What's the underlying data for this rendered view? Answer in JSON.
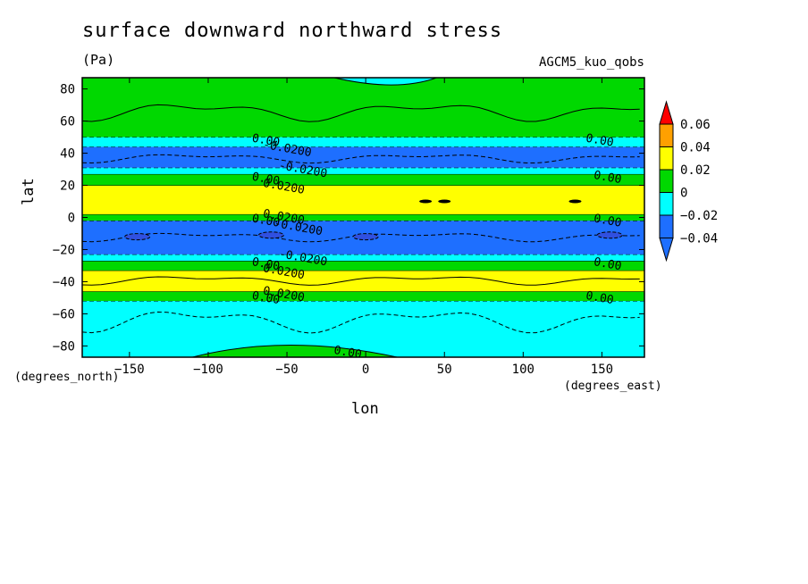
{
  "chart_data": {
    "type": "heatmap",
    "title": "surface downward northward stress",
    "units": "(Pa)",
    "model": "AGCM5_kuo_qobs",
    "xlabel": "lon",
    "ylabel": "lat",
    "x_unit_label": "(degrees_east)",
    "y_unit_label": "(degrees_north)",
    "xlim": [
      -180,
      177
    ],
    "ylim": [
      -87,
      87
    ],
    "x_ticks": [
      -150,
      -100,
      -50,
      0,
      50,
      100,
      150
    ],
    "x_tick_labels": [
      "−150",
      "−100",
      "−50",
      "0",
      "50",
      "100",
      "150"
    ],
    "y_ticks": [
      -80,
      -60,
      -40,
      -20,
      0,
      20,
      40,
      60,
      80
    ],
    "y_tick_labels": [
      "−80",
      "−60",
      "−40",
      "−20",
      "0",
      "20",
      "40",
      "60",
      "80"
    ],
    "colorbar": {
      "levels": [
        -0.04,
        -0.02,
        0,
        0.02,
        0.04,
        0.06
      ],
      "labels": [
        "−0.04",
        "−0.02",
        "0",
        "0.02",
        "0.04",
        "0.06"
      ],
      "colors": [
        "#1e6fff",
        "#00ffff",
        "#00d800",
        "#ffff00",
        "#ffa000",
        "#ff0000"
      ],
      "under_color": "#1e6fff",
      "over_color": "#ff0000"
    },
    "bands": [
      {
        "lat_from": -87,
        "lat_to": -52,
        "value_class": -0.02
      },
      {
        "lat_from": -52,
        "lat_to": -46,
        "value_class": 0.0
      },
      {
        "lat_from": -46,
        "lat_to": -33,
        "value_class": 0.02
      },
      {
        "lat_from": -33,
        "lat_to": -27,
        "value_class": 0.0
      },
      {
        "lat_from": -27,
        "lat_to": -23,
        "value_class": -0.02
      },
      {
        "lat_from": -23,
        "lat_to": -2,
        "value_class": -0.04
      },
      {
        "lat_from": -2,
        "lat_to": 2,
        "value_class": 0.0
      },
      {
        "lat_from": 2,
        "lat_to": 20,
        "value_class": 0.02
      },
      {
        "lat_from": 20,
        "lat_to": 27,
        "value_class": 0.0
      },
      {
        "lat_from": 27,
        "lat_to": 31,
        "value_class": -0.02
      },
      {
        "lat_from": 31,
        "lat_to": 44,
        "value_class": -0.04
      },
      {
        "lat_from": 44,
        "lat_to": 50,
        "value_class": -0.02
      },
      {
        "lat_from": 50,
        "lat_to": 87,
        "value_class": 0.0
      }
    ],
    "contour_labels": [
      {
        "text": "0.00",
        "lon": -72,
        "lat": 50
      },
      {
        "text": "-0.0200",
        "lon": -65,
        "lat": 46
      },
      {
        "text": "-0.0200",
        "lon": -55,
        "lat": 33
      },
      {
        "text": "0.00",
        "lon": -72,
        "lat": 26
      },
      {
        "text": "0.0200",
        "lon": -65,
        "lat": 22
      },
      {
        "text": "0.0200",
        "lon": -65,
        "lat": 3
      },
      {
        "text": "0.00",
        "lon": -72,
        "lat": 0
      },
      {
        "text": "-0.0200",
        "lon": -58,
        "lat": -3
      },
      {
        "text": "-0.0200",
        "lon": -55,
        "lat": -22
      },
      {
        "text": "0.00",
        "lon": -72,
        "lat": -27
      },
      {
        "text": "0.0200",
        "lon": -65,
        "lat": -31
      },
      {
        "text": "0.0200",
        "lon": -65,
        "lat": -45
      },
      {
        "text": "0.00",
        "lon": -72,
        "lat": -48
      },
      {
        "text": "0.00",
        "lon": -20,
        "lat": -82
      },
      {
        "text": "0.00",
        "lon": 140,
        "lat": 50
      },
      {
        "text": "0.00",
        "lon": 145,
        "lat": 27
      },
      {
        "text": "0.00",
        "lon": 145,
        "lat": 0
      },
      {
        "text": "0.00",
        "lon": 145,
        "lat": -27
      },
      {
        "text": "0.00",
        "lon": 140,
        "lat": -48
      }
    ]
  }
}
